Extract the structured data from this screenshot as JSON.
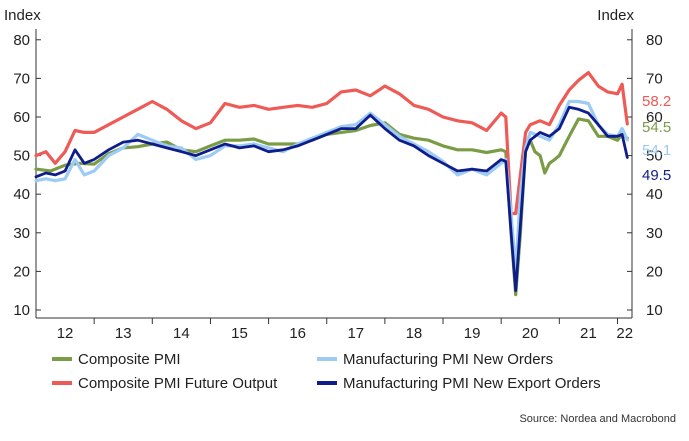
{
  "chart_data": {
    "type": "line",
    "y_axis_title_left": "Index",
    "y_axis_title_right": "Index",
    "ylim": [
      10,
      80
    ],
    "xlim": [
      2012.0,
      2022.25
    ],
    "y_ticks": [
      10,
      20,
      30,
      40,
      50,
      60,
      70,
      80
    ],
    "x_ticks": [
      "12",
      "13",
      "14",
      "15",
      "16",
      "17",
      "18",
      "19",
      "20",
      "21",
      "22"
    ],
    "grid": false,
    "legend": "bottom",
    "source": "Source: Nordea and Macrobond",
    "series": [
      {
        "name": "Composite PMI",
        "color": "#7b9c46",
        "end_label": "54.5",
        "x": [
          2012.0,
          2012.25,
          2012.5,
          2012.75,
          2013.0,
          2013.25,
          2013.5,
          2013.75,
          2014.0,
          2014.25,
          2014.5,
          2014.75,
          2015.0,
          2015.25,
          2015.5,
          2015.75,
          2016.0,
          2016.25,
          2016.5,
          2016.75,
          2017.0,
          2017.25,
          2017.5,
          2017.75,
          2018.0,
          2018.25,
          2018.5,
          2018.75,
          2019.0,
          2019.25,
          2019.5,
          2019.75,
          2020.0,
          2020.08,
          2020.17,
          2020.25,
          2020.33,
          2020.42,
          2020.5,
          2020.58,
          2020.67,
          2020.75,
          2020.83,
          2020.92,
          2021.0,
          2021.17,
          2021.33,
          2021.5,
          2021.67,
          2021.83,
          2022.0,
          2022.08,
          2022.17
        ],
        "y": [
          46.5,
          46.0,
          47.5,
          48.0,
          47.8,
          50.5,
          52.0,
          52.3,
          53.0,
          53.5,
          51.5,
          51.0,
          52.5,
          54.0,
          54.0,
          54.3,
          53.0,
          53.0,
          53.0,
          54.0,
          55.5,
          56.0,
          56.5,
          57.8,
          58.5,
          55.5,
          54.5,
          54.0,
          52.5,
          51.5,
          51.5,
          50.8,
          51.5,
          51.0,
          30.0,
          14.0,
          30.0,
          52.0,
          54.0,
          51.0,
          50.0,
          45.5,
          48.0,
          49.0,
          50.0,
          55.0,
          59.5,
          59.0,
          55.0,
          55.0,
          54.0,
          55.5,
          54.5
        ]
      },
      {
        "name": "Composite PMI Future Output",
        "color": "#ee5a55",
        "end_label": "58.2",
        "x": [
          2012.0,
          2012.17,
          2012.33,
          2012.5,
          2012.67,
          2012.83,
          2013.0,
          2013.25,
          2013.5,
          2013.75,
          2014.0,
          2014.25,
          2014.5,
          2014.75,
          2015.0,
          2015.25,
          2015.5,
          2015.75,
          2016.0,
          2016.25,
          2016.5,
          2016.75,
          2017.0,
          2017.25,
          2017.5,
          2017.75,
          2018.0,
          2018.25,
          2018.5,
          2018.75,
          2019.0,
          2019.25,
          2019.5,
          2019.75,
          2020.0,
          2020.08,
          2020.17,
          2020.25,
          2020.33,
          2020.42,
          2020.5,
          2020.67,
          2020.83,
          2021.0,
          2021.17,
          2021.33,
          2021.5,
          2021.67,
          2021.83,
          2022.0,
          2022.08,
          2022.17
        ],
        "y": [
          50.0,
          51.0,
          48.0,
          51.0,
          56.5,
          56.0,
          56.0,
          58.0,
          60.0,
          62.0,
          64.0,
          62.0,
          59.0,
          57.0,
          58.5,
          63.5,
          62.5,
          63.0,
          62.0,
          62.5,
          63.0,
          62.5,
          63.5,
          66.5,
          67.0,
          65.5,
          68.0,
          66.0,
          63.0,
          62.0,
          60.0,
          59.0,
          58.5,
          56.5,
          61.0,
          60.0,
          35.0,
          35.0,
          45.0,
          56.0,
          58.0,
          59.0,
          58.0,
          63.0,
          67.0,
          69.5,
          71.5,
          68.0,
          66.5,
          66.0,
          68.5,
          58.2
        ]
      },
      {
        "name": "Manufacturing PMI New Orders",
        "color": "#9dcbf4",
        "end_label": "54.1",
        "x": [
          2012.0,
          2012.17,
          2012.33,
          2012.5,
          2012.67,
          2012.83,
          2013.0,
          2013.25,
          2013.5,
          2013.75,
          2014.0,
          2014.25,
          2014.5,
          2014.75,
          2015.0,
          2015.25,
          2015.5,
          2015.75,
          2016.0,
          2016.25,
          2016.5,
          2016.75,
          2017.0,
          2017.25,
          2017.5,
          2017.75,
          2018.0,
          2018.25,
          2018.5,
          2018.75,
          2019.0,
          2019.25,
          2019.5,
          2019.75,
          2020.0,
          2020.08,
          2020.17,
          2020.25,
          2020.33,
          2020.42,
          2020.5,
          2020.67,
          2020.83,
          2021.0,
          2021.17,
          2021.33,
          2021.5,
          2021.67,
          2021.83,
          2022.0,
          2022.08,
          2022.17
        ],
        "y": [
          43.5,
          44.0,
          43.5,
          44.0,
          49.0,
          45.0,
          46.0,
          50.0,
          52.0,
          55.5,
          54.0,
          52.5,
          52.0,
          49.0,
          50.0,
          52.5,
          52.5,
          53.0,
          52.0,
          51.0,
          53.0,
          54.5,
          56.0,
          57.5,
          58.0,
          61.0,
          58.0,
          55.0,
          53.0,
          51.0,
          48.5,
          45.0,
          46.5,
          45.0,
          48.0,
          49.0,
          35.0,
          20.0,
          40.0,
          52.0,
          56.0,
          55.0,
          54.0,
          58.0,
          64.0,
          64.0,
          63.5,
          58.0,
          55.5,
          55.0,
          57.0,
          54.1
        ]
      },
      {
        "name": "Manufacturing PMI New Export Orders",
        "color": "#0f1d8a",
        "end_label": "49.5",
        "x": [
          2012.0,
          2012.17,
          2012.33,
          2012.5,
          2012.67,
          2012.83,
          2013.0,
          2013.25,
          2013.5,
          2013.75,
          2014.0,
          2014.25,
          2014.5,
          2014.75,
          2015.0,
          2015.25,
          2015.5,
          2015.75,
          2016.0,
          2016.25,
          2016.5,
          2016.75,
          2017.0,
          2017.25,
          2017.5,
          2017.75,
          2018.0,
          2018.25,
          2018.5,
          2018.75,
          2019.0,
          2019.25,
          2019.5,
          2019.75,
          2020.0,
          2020.08,
          2020.17,
          2020.25,
          2020.33,
          2020.42,
          2020.5,
          2020.67,
          2020.83,
          2021.0,
          2021.17,
          2021.33,
          2021.5,
          2021.67,
          2021.83,
          2022.0,
          2022.08,
          2022.17
        ],
        "y": [
          44.5,
          45.5,
          45.0,
          46.0,
          51.5,
          48.0,
          49.0,
          51.5,
          53.5,
          54.0,
          53.0,
          52.0,
          51.0,
          50.0,
          51.5,
          53.0,
          52.0,
          52.5,
          51.0,
          51.5,
          52.5,
          54.0,
          55.5,
          57.0,
          57.0,
          60.5,
          57.0,
          54.0,
          52.5,
          50.0,
          48.0,
          46.0,
          46.5,
          46.0,
          49.0,
          48.5,
          30.0,
          15.0,
          32.0,
          51.0,
          54.0,
          56.0,
          55.0,
          57.0,
          62.5,
          62.0,
          61.0,
          58.0,
          55.0,
          55.0,
          55.5,
          49.5
        ]
      }
    ]
  }
}
